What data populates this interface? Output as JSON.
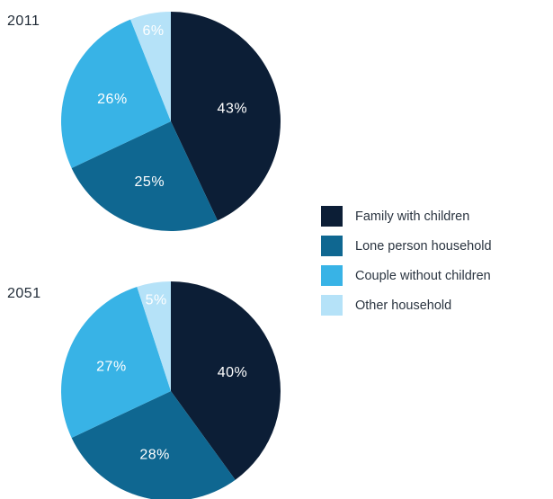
{
  "chart_data": [
    {
      "type": "pie",
      "title": "2011",
      "categories": [
        "Family with children",
        "Lone person household",
        "Couple without children",
        "Other household"
      ],
      "values": [
        43,
        25,
        26,
        6
      ],
      "labels": [
        "43%",
        "25%",
        "26%",
        "6%"
      ]
    },
    {
      "type": "pie",
      "title": "2051",
      "categories": [
        "Family with children",
        "Lone person household",
        "Couple without children",
        "Other household"
      ],
      "values": [
        40,
        28,
        27,
        5
      ],
      "labels": [
        "40%",
        "28%",
        "27%",
        "5%"
      ]
    }
  ],
  "legend": [
    {
      "label": "Family with children",
      "color": "#0c1e36"
    },
    {
      "label": "Lone person household",
      "color": "#0f6791"
    },
    {
      "label": "Couple without children",
      "color": "#38b3e6"
    },
    {
      "label": "Other household",
      "color": "#b5e2f8"
    }
  ],
  "colors": [
    "#0c1e36",
    "#0f6791",
    "#38b3e6",
    "#b5e2f8"
  ]
}
